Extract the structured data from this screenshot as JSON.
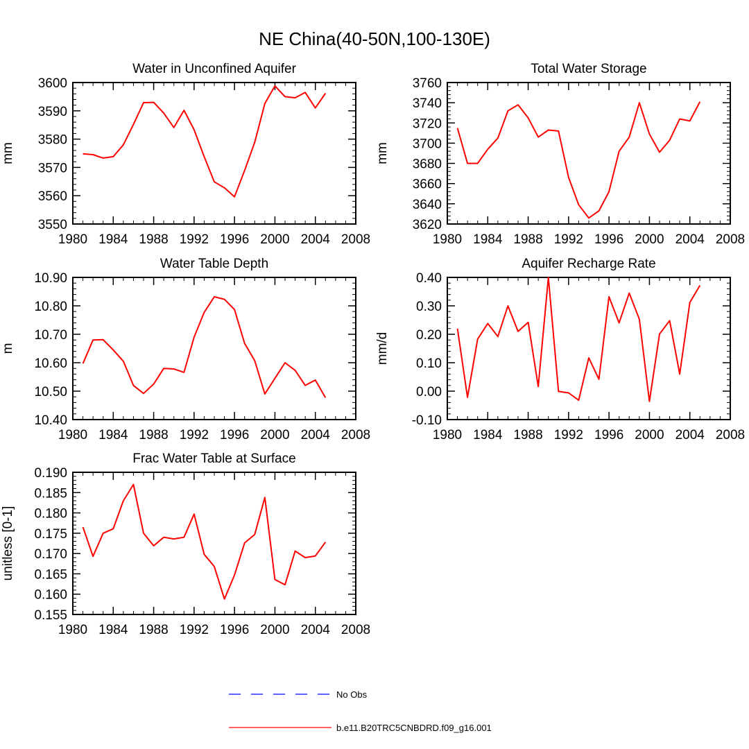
{
  "figure": {
    "title": "NE China(40-50N,100-130E)"
  },
  "chart_data": [
    {
      "type": "line",
      "title": "Water in Unconfined Aquifer",
      "xlabel": "",
      "ylabel": "mm",
      "xlim": [
        1980,
        2008
      ],
      "ylim": [
        3550,
        3600
      ],
      "xticks": [
        1980,
        1984,
        1988,
        1992,
        1996,
        2000,
        2004,
        2008
      ],
      "yticks": [
        "3550",
        "3560",
        "3570",
        "3580",
        "3590",
        "3600"
      ],
      "x": [
        1981,
        1982,
        1983,
        1984,
        1985,
        1986,
        1987,
        1988,
        1989,
        1990,
        1991,
        1992,
        1993,
        1994,
        1995,
        1996,
        1997,
        1998,
        1999,
        2000,
        2001,
        2002,
        2003,
        2004,
        2005
      ],
      "series": [
        {
          "name": "b.e11.B20TRC5CNBDRD.f09_g16.001",
          "color": "#ff0000",
          "values": [
            3574.8,
            3574.5,
            3573.3,
            3573.8,
            3578.0,
            3585.2,
            3592.9,
            3593.0,
            3589.2,
            3584.1,
            3590.2,
            3583.3,
            3573.8,
            3564.9,
            3562.8,
            3559.6,
            3568.9,
            3578.9,
            3592.6,
            3598.8,
            3595.0,
            3594.6,
            3596.5,
            3591.0,
            3596.2
          ]
        }
      ]
    },
    {
      "type": "line",
      "title": "Total Water Storage",
      "xlabel": "",
      "ylabel": "mm",
      "xlim": [
        1980,
        2008
      ],
      "ylim": [
        3620,
        3760
      ],
      "xticks": [
        1980,
        1984,
        1988,
        1992,
        1996,
        2000,
        2004,
        2008
      ],
      "yticks": [
        "3620",
        "3640",
        "3660",
        "3680",
        "3700",
        "3720",
        "3740",
        "3760"
      ],
      "x": [
        1981,
        1982,
        1983,
        1984,
        1985,
        1986,
        1987,
        1988,
        1989,
        1990,
        1991,
        1992,
        1993,
        1994,
        1995,
        1996,
        1997,
        1998,
        1999,
        2000,
        2001,
        2002,
        2003,
        2004,
        2005
      ],
      "series": [
        {
          "name": "b.e11.B20TRC5CNBDRD.f09_g16.001",
          "color": "#ff0000",
          "values": [
            3715,
            3680,
            3680,
            3694,
            3705,
            3732,
            3738,
            3725,
            3706,
            3713,
            3712,
            3666,
            3639,
            3626,
            3633,
            3652,
            3692,
            3706,
            3740,
            3709,
            3691,
            3703,
            3724,
            3722,
            3741
          ]
        }
      ]
    },
    {
      "type": "line",
      "title": "Water Table Depth",
      "xlabel": "",
      "ylabel": "m",
      "xlim": [
        1980,
        2008
      ],
      "ylim": [
        10.4,
        10.9
      ],
      "xticks": [
        1980,
        1984,
        1988,
        1992,
        1996,
        2000,
        2004,
        2008
      ],
      "yticks": [
        "10.40",
        "10.50",
        "10.60",
        "10.70",
        "10.80",
        "10.90"
      ],
      "x": [
        1981,
        1982,
        1983,
        1984,
        1985,
        1986,
        1987,
        1988,
        1989,
        1990,
        1991,
        1992,
        1993,
        1994,
        1995,
        1996,
        1997,
        1998,
        1999,
        2000,
        2001,
        2002,
        2003,
        2004,
        2005
      ],
      "series": [
        {
          "name": "b.e11.B20TRC5CNBDRD.f09_g16.001",
          "color": "#ff0000",
          "values": [
            10.597,
            10.68,
            10.681,
            10.645,
            10.605,
            10.52,
            10.492,
            10.525,
            10.58,
            10.578,
            10.566,
            10.69,
            10.777,
            10.832,
            10.823,
            10.787,
            10.668,
            10.607,
            10.49,
            10.545,
            10.6,
            10.573,
            10.52,
            10.539,
            10.477
          ]
        }
      ]
    },
    {
      "type": "line",
      "title": "Aquifer Recharge Rate",
      "xlabel": "",
      "ylabel": "mm/d",
      "xlim": [
        1980,
        2008
      ],
      "ylim": [
        -0.1,
        0.4
      ],
      "xticks": [
        1980,
        1984,
        1988,
        1992,
        1996,
        2000,
        2004,
        2008
      ],
      "yticks": [
        "-0.10",
        "0.00",
        "0.10",
        "0.20",
        "0.30",
        "0.40"
      ],
      "x": [
        1981,
        1982,
        1983,
        1984,
        1985,
        1986,
        1987,
        1988,
        1989,
        1990,
        1991,
        1992,
        1993,
        1994,
        1995,
        1996,
        1997,
        1998,
        1999,
        2000,
        2001,
        2002,
        2003,
        2004,
        2005
      ],
      "series": [
        {
          "name": "b.e11.B20TRC5CNBDRD.f09_g16.001",
          "color": "#ff0000",
          "values": [
            0.22,
            -0.022,
            0.183,
            0.238,
            0.192,
            0.3,
            0.21,
            0.242,
            0.016,
            0.4,
            -0.001,
            -0.006,
            -0.032,
            0.117,
            0.042,
            0.332,
            0.24,
            0.345,
            0.253,
            -0.036,
            0.201,
            0.248,
            0.06,
            0.312,
            0.372
          ]
        }
      ]
    },
    {
      "type": "line",
      "title": "Frac Water Table at Surface",
      "xlabel": "",
      "ylabel": "unitless [0-1]",
      "xlim": [
        1980,
        2008
      ],
      "ylim": [
        0.155,
        0.19
      ],
      "xticks": [
        1980,
        1984,
        1988,
        1992,
        1996,
        2000,
        2004,
        2008
      ],
      "yticks": [
        "0.155",
        "0.160",
        "0.165",
        "0.170",
        "0.175",
        "0.180",
        "0.185",
        "0.190"
      ],
      "x": [
        1981,
        1982,
        1983,
        1984,
        1985,
        1986,
        1987,
        1988,
        1989,
        1990,
        1991,
        1992,
        1993,
        1994,
        1995,
        1996,
        1997,
        1998,
        1999,
        2000,
        2001,
        2002,
        2003,
        2004,
        2005
      ],
      "series": [
        {
          "name": "b.e11.B20TRC5CNBDRD.f09_g16.001",
          "color": "#ff0000",
          "values": [
            0.1765,
            0.1693,
            0.175,
            0.1761,
            0.183,
            0.187,
            0.175,
            0.1719,
            0.174,
            0.1736,
            0.174,
            0.1797,
            0.1698,
            0.1668,
            0.1588,
            0.1647,
            0.1726,
            0.1747,
            0.1838,
            0.1636,
            0.1623,
            0.1706,
            0.169,
            0.1694,
            0.1728
          ]
        }
      ]
    }
  ],
  "legend": {
    "items": [
      {
        "label": "No Obs",
        "color": "#0000ff",
        "style": "dashed"
      },
      {
        "label": "b.e11.B20TRC5CNBDRD.f09_g16.001",
        "color": "#ff0000",
        "style": "solid"
      }
    ]
  }
}
